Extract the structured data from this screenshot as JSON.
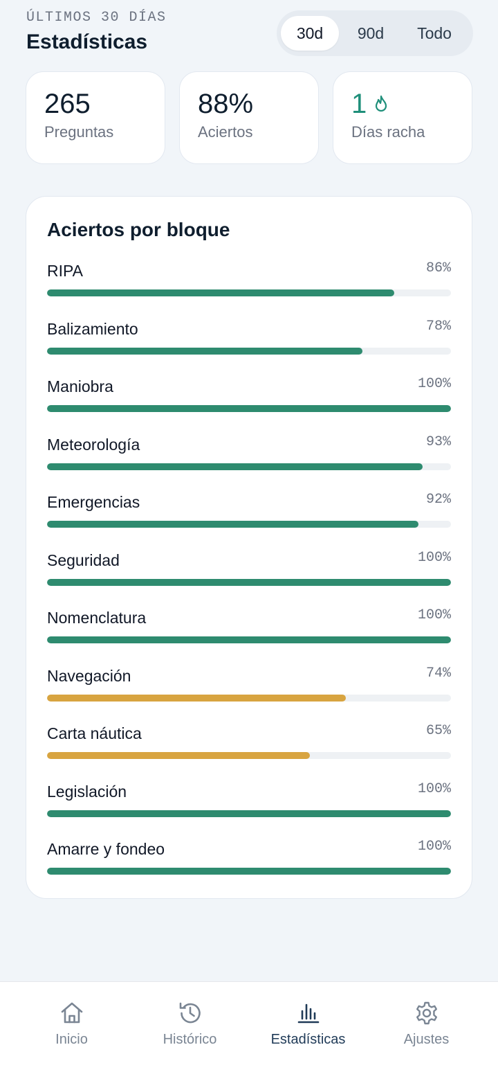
{
  "header": {
    "eyebrow": "ÚLTIMOS 30 DÍAS",
    "title": "Estadísticas",
    "range_options": [
      {
        "label": "30d",
        "active": true
      },
      {
        "label": "90d",
        "active": false
      },
      {
        "label": "Todo",
        "active": false
      }
    ]
  },
  "stats": [
    {
      "value": "265",
      "label": "Preguntas"
    },
    {
      "value": "88%",
      "label": "Aciertos"
    },
    {
      "value": "1",
      "label": "Días racha",
      "icon": "flame-icon"
    }
  ],
  "blocks": {
    "title": "Aciertos por bloque",
    "items": [
      {
        "name": "RIPA",
        "pct_label": "86%",
        "value": 86
      },
      {
        "name": "Balizamiento",
        "pct_label": "78%",
        "value": 78
      },
      {
        "name": "Maniobra",
        "pct_label": "100%",
        "value": 100
      },
      {
        "name": "Meteorología",
        "pct_label": "93%",
        "value": 93
      },
      {
        "name": "Emergencias",
        "pct_label": "92%",
        "value": 92
      },
      {
        "name": "Seguridad",
        "pct_label": "100%",
        "value": 100
      },
      {
        "name": "Nomenclatura",
        "pct_label": "100%",
        "value": 100
      },
      {
        "name": "Navegación",
        "pct_label": "74%",
        "value": 74
      },
      {
        "name": "Carta náutica",
        "pct_label": "65%",
        "value": 65
      },
      {
        "name": "Legislación",
        "pct_label": "100%",
        "value": 100
      },
      {
        "name": "Amarre y fondeo",
        "pct_label": "100%",
        "value": 100
      }
    ]
  },
  "colors": {
    "good": "#2e8b6f",
    "warn": "#d8a440",
    "accent": "#1f8f7a"
  },
  "nav": [
    {
      "label": "Inicio",
      "icon": "home-icon",
      "active": false
    },
    {
      "label": "Histórico",
      "icon": "history-icon",
      "active": false
    },
    {
      "label": "Estadísticas",
      "icon": "bar-chart-icon",
      "active": true
    },
    {
      "label": "Ajustes",
      "icon": "gear-icon",
      "active": false
    }
  ]
}
